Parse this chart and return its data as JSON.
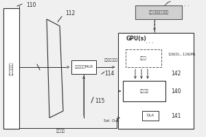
{
  "bg_color": "#f0f0f0",
  "line_color": "#2a2a2a",
  "box_fill": "#ffffff",
  "gray_fill": "#c8c8c8",
  "labels": {
    "110": "110",
    "112": "112",
    "114": "114",
    "115": "115",
    "116": "116(0)...116(M)",
    "140": "140",
    "141": "141",
    "142": "142",
    "gpu_label": "GPU(s)",
    "memory_label": "一个或更多个存储器",
    "processor_label": "处理器",
    "power_mgmt_label": "功率管理",
    "dla_label": "DLA",
    "left_label": "功率分配网络",
    "mid_label": "信号调节器MUX",
    "power_monitor_label": "功率监控器输入",
    "power_ctrl_label": "功率控制",
    "sel_out_label": "Sel. Out"
  },
  "fs_label": 5.0,
  "fs_tiny": 4.0,
  "fs_num": 5.5,
  "fs_gpu": 5.5
}
